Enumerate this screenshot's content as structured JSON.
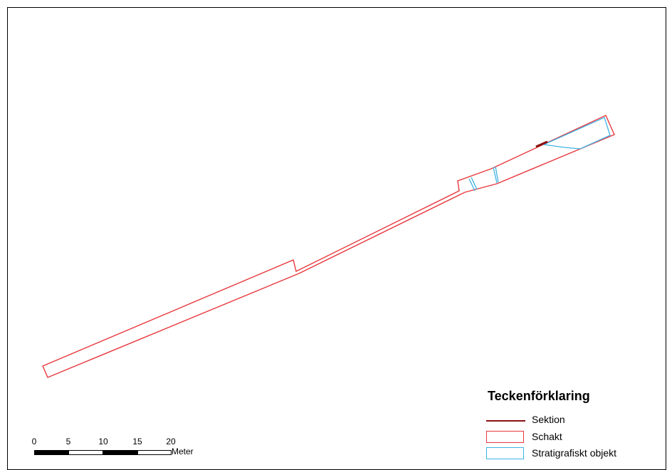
{
  "map": {
    "colors": {
      "schakt": "#e8383d",
      "stratigrafiskt_objekt": "#3fb4e6",
      "sektion": "#8b1010"
    }
  },
  "legend": {
    "title": "Teckenförklaring",
    "items": [
      {
        "label": "Sektion",
        "symbol": "line",
        "color": "#8b1010"
      },
      {
        "label": "Schakt",
        "symbol": "box",
        "color": "#e8383d"
      },
      {
        "label": "Stratigrafiskt objekt",
        "symbol": "box",
        "color": "#3fb4e6"
      }
    ]
  },
  "scalebar": {
    "ticks": [
      "0",
      "5",
      "10",
      "15",
      "20"
    ],
    "unit": "Meter"
  }
}
